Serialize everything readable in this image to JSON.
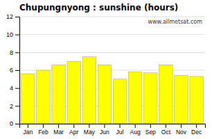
{
  "chart_data": {
    "type": "bar",
    "title": "Chupungnyong : sunshine (hours)",
    "categories": [
      "Jan",
      "Feb",
      "Mar",
      "Apr",
      "May",
      "Jun",
      "Jul",
      "Aug",
      "Sep",
      "Oct",
      "Nov",
      "Dec"
    ],
    "values": [
      5.6,
      6.0,
      6.6,
      7.0,
      7.5,
      6.6,
      5.0,
      5.8,
      5.7,
      6.6,
      5.4,
      5.3
    ],
    "color": "#ffff00",
    "ylim": [
      0,
      12
    ],
    "yticks": [
      0,
      2,
      4,
      6,
      8,
      10,
      12
    ],
    "grid": true,
    "annotations": [
      "www.allmetsat.com"
    ]
  }
}
